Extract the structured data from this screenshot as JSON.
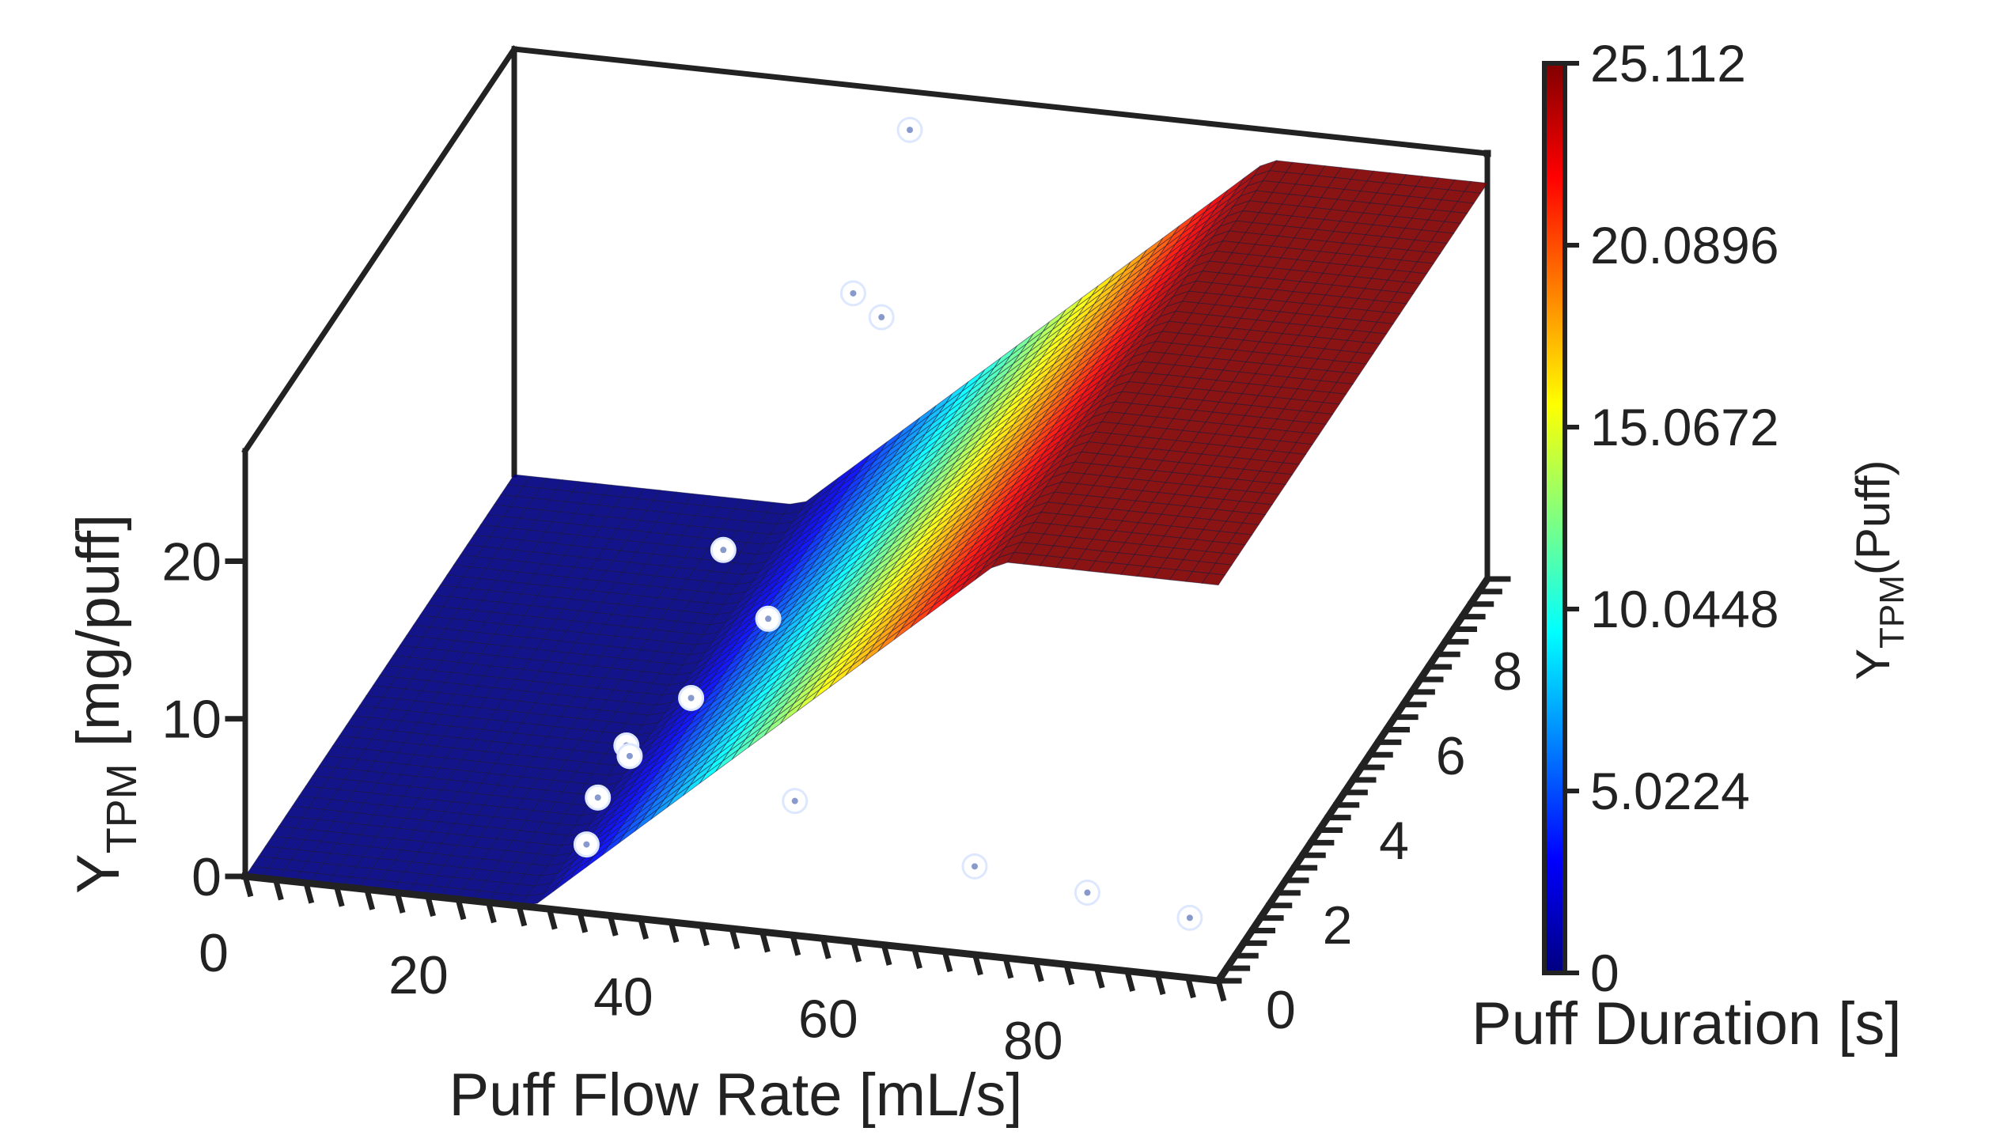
{
  "chart_data": {
    "type": "surface3d",
    "surface_model": "Y_TPM = max(0, slope * (flow_rate - threshold)) (independent of puff duration)",
    "surface_params": {
      "threshold": 28,
      "slope": 0.55,
      "cap": 25.112
    },
    "x_axis": {
      "label": "Puff Flow Rate [mL/s]",
      "range": [
        0,
        95
      ],
      "ticks": [
        0,
        20,
        40,
        60,
        80
      ]
    },
    "y_axis": {
      "label": "Puff Duration [s]",
      "range": [
        0,
        9.5
      ],
      "ticks": [
        0,
        2,
        4,
        6,
        8
      ]
    },
    "z_axis": {
      "label_main": "Y",
      "label_sub": "TPM",
      "label_rest": " [mg/puff]",
      "range": [
        0,
        27
      ],
      "ticks": [
        0,
        10,
        20
      ]
    },
    "colorbar": {
      "title_main": "Y",
      "title_sub": "TPM",
      "title_rest": "(Puff)",
      "min": 0,
      "max": 25.112,
      "tick_labels": [
        "0",
        "5.0224",
        "10.0448",
        "15.0672",
        "20.0896",
        "25.112"
      ],
      "colormap": [
        "#000080",
        "#0000ff",
        "#0080ff",
        "#00ffff",
        "#80ff80",
        "#ffff00",
        "#ff8000",
        "#ff0000",
        "#800000"
      ]
    },
    "points": [
      {
        "x": 40,
        "y": 8,
        "z": 16.8
      },
      {
        "x": 37,
        "y": 3.5,
        "z": 13.9
      },
      {
        "x": 40,
        "y": 4,
        "z": 8.4
      },
      {
        "x": 38,
        "y": 2,
        "z": 8.6
      },
      {
        "x": 35,
        "y": 0.8,
        "z": 8.6
      },
      {
        "x": 30,
        "y": 1.6,
        "z": 2.8
      },
      {
        "x": 32,
        "y": 2,
        "z": 4.5
      },
      {
        "x": 30,
        "y": 1.2,
        "z": 0.9
      },
      {
        "x": 52,
        "y": 0.6,
        "z": 6.8
      },
      {
        "x": 69,
        "y": 0.8,
        "z": 3.3
      },
      {
        "x": 80,
        "y": 0.8,
        "z": 2.4
      },
      {
        "x": 90,
        "y": 0.8,
        "z": 1.5
      },
      {
        "x": 40,
        "y": 7,
        "z": 21
      },
      {
        "x": 40,
        "y": 9,
        "z": 26
      }
    ]
  }
}
